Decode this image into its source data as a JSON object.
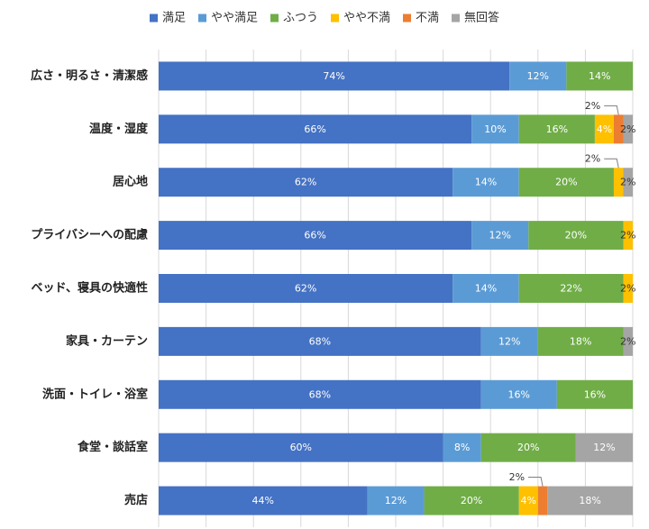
{
  "chart_data": {
    "type": "bar",
    "orientation": "horizontal",
    "stacked": true,
    "legend_position": "top",
    "grid": true,
    "xlim": [
      0,
      100
    ],
    "series": [
      {
        "name": "満足",
        "color": "#4472C4",
        "values": [
          74,
          66,
          62,
          66,
          62,
          68,
          68,
          60,
          44
        ]
      },
      {
        "name": "やや満足",
        "color": "#5B9BD5",
        "values": [
          12,
          10,
          14,
          12,
          14,
          12,
          16,
          8,
          12
        ]
      },
      {
        "name": "ふつう",
        "color": "#70AD47",
        "values": [
          14,
          16,
          20,
          20,
          22,
          18,
          16,
          20,
          20
        ]
      },
      {
        "name": "やや不満",
        "color": "#FFC000",
        "values": [
          0,
          4,
          2,
          2,
          2,
          0,
          0,
          0,
          4
        ]
      },
      {
        "name": "不満",
        "color": "#ED7D31",
        "values": [
          0,
          2,
          0,
          0,
          0,
          0,
          0,
          0,
          2
        ]
      },
      {
        "name": "無回答",
        "color": "#A5A5A5",
        "values": [
          0,
          2,
          2,
          0,
          0,
          2,
          0,
          12,
          18
        ]
      }
    ],
    "categories": [
      "広さ・明るさ・清潔感",
      "温度・湿度",
      "居心地",
      "プライバシーへの配慮",
      "ベッド、寝具の快適性",
      "家具・カーテン",
      "洗面・トイレ・浴室",
      "食堂・談話室",
      "売店"
    ],
    "callouts": [
      {
        "category_index": 1,
        "series_index": 4,
        "label": "2%"
      },
      {
        "category_index": 2,
        "series_index": 3,
        "label": "2%"
      },
      {
        "category_index": 8,
        "series_index": 4,
        "label": "2%"
      }
    ]
  }
}
